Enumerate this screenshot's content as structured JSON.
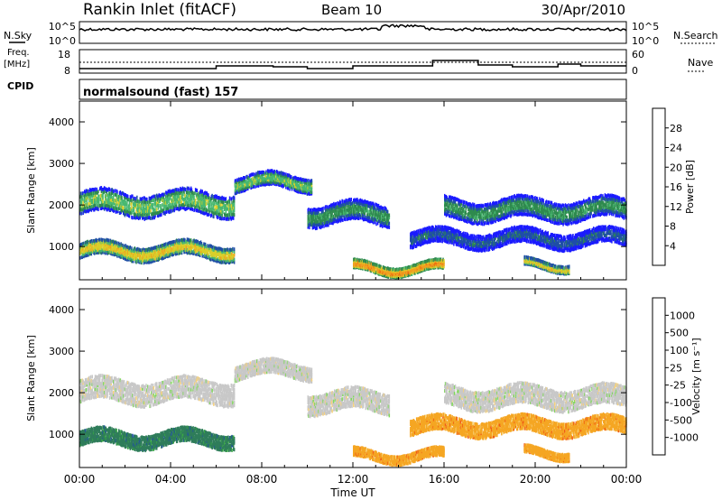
{
  "header": {
    "station": "Rankin Inlet (fitACF)",
    "beam": "Beam 10",
    "date": "30/Apr/2010"
  },
  "left_labels": {
    "nsky": "N.Sky",
    "freq_line1": "Freq.",
    "freq_line2": "[MHz]",
    "cpid": "CPID"
  },
  "right_labels": {
    "nsearch": "N.Search",
    "nave": "Nave"
  },
  "noise_panel": {
    "left_ticks": [
      "10^5",
      "10^0"
    ],
    "right_ticks": [
      "10^5",
      "10^0"
    ]
  },
  "freq_panel": {
    "left_ticks": [
      "18",
      "8"
    ],
    "right_ticks": [
      "60",
      "0"
    ]
  },
  "cpid_text": "normalsound (fast) 157",
  "x_axis": {
    "label": "Time UT",
    "ticks": [
      "00:00",
      "04:00",
      "08:00",
      "12:00",
      "16:00",
      "20:00",
      "00:00"
    ],
    "tick_hours": [
      0,
      4,
      8,
      12,
      16,
      20,
      24
    ],
    "range": [
      0,
      24
    ]
  },
  "colors": {
    "power_scale": [
      "#1a1aff",
      "#1f4fa6",
      "#2f8a4f",
      "#48b870",
      "#d9cf2a",
      "#f0a020",
      "#f06a10",
      "#e62020"
    ],
    "velocity_scale": [
      "#e01a1a",
      "#f05a14",
      "#f5a623",
      "#f7d27a",
      "#c8c8c8",
      "#7ed957",
      "#39a845",
      "#2f7d5a",
      "#2050a0",
      "#1a2ad0"
    ]
  },
  "chart_data": [
    {
      "type": "heatmap",
      "title": "",
      "xlabel": "Time UT",
      "ylabel": "Slant Range [km]",
      "xlim": [
        0,
        24
      ],
      "ylim": [
        200,
        4500
      ],
      "y_ticks": [
        "4000",
        "3000",
        "2000",
        "1000"
      ],
      "y_tick_values": [
        4000,
        3000,
        2000,
        1000
      ],
      "colorbar_label": "Power [dB]",
      "colorbar_ticks": [
        "28",
        "24",
        "20",
        "16",
        "12",
        "8",
        "4"
      ],
      "bands": [
        {
          "t0": 0.0,
          "t1": 6.8,
          "r_center": 2050,
          "r_width": 550,
          "power": 14
        },
        {
          "t0": 0.0,
          "t1": 6.8,
          "r_center": 900,
          "r_width": 350,
          "power": 17
        },
        {
          "t0": 6.8,
          "t1": 10.2,
          "r_center": 2550,
          "r_width": 350,
          "power": 16
        },
        {
          "t0": 10.0,
          "t1": 13.6,
          "r_center": 1800,
          "r_width": 500,
          "power": 11
        },
        {
          "t0": 12.0,
          "t1": 16.0,
          "r_center": 480,
          "r_width": 220,
          "power": 24
        },
        {
          "t0": 14.5,
          "t1": 24.0,
          "r_center": 1200,
          "r_width": 380,
          "power": 9
        },
        {
          "t0": 16.0,
          "t1": 24.0,
          "r_center": 1900,
          "r_width": 500,
          "power": 10
        },
        {
          "t0": 19.5,
          "t1": 21.5,
          "r_center": 550,
          "r_width": 180,
          "power": 18
        }
      ]
    },
    {
      "type": "heatmap",
      "title": "",
      "xlabel": "Time UT",
      "ylabel": "Slant Range [km]",
      "xlim": [
        0,
        24
      ],
      "ylim": [
        200,
        4500
      ],
      "y_ticks": [
        "4000",
        "3000",
        "2000",
        "1000"
      ],
      "y_tick_values": [
        4000,
        3000,
        2000,
        1000
      ],
      "colorbar_label": "Velocity [m s⁻¹]",
      "colorbar_ticks": [
        "1000",
        "500",
        "100",
        "25",
        "-25",
        "-100",
        "-500",
        "-1000"
      ],
      "bands": [
        {
          "t0": 0.0,
          "t1": 6.8,
          "r_center": 2050,
          "r_width": 550,
          "velocity": 0
        },
        {
          "t0": 0.0,
          "t1": 6.8,
          "r_center": 900,
          "r_width": 350,
          "velocity": 200
        },
        {
          "t0": 6.8,
          "t1": 10.2,
          "r_center": 2550,
          "r_width": 350,
          "velocity": 0
        },
        {
          "t0": 10.0,
          "t1": 13.6,
          "r_center": 1800,
          "r_width": 500,
          "velocity": 0
        },
        {
          "t0": 12.0,
          "t1": 16.0,
          "r_center": 480,
          "r_width": 220,
          "velocity": -200
        },
        {
          "t0": 14.5,
          "t1": 24.0,
          "r_center": 1200,
          "r_width": 380,
          "velocity": -150
        },
        {
          "t0": 16.0,
          "t1": 24.0,
          "r_center": 1900,
          "r_width": 500,
          "velocity": 0
        },
        {
          "t0": 19.5,
          "t1": 21.5,
          "r_center": 550,
          "r_width": 180,
          "velocity": -120
        }
      ]
    }
  ]
}
